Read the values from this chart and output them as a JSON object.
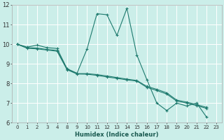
{
  "xlabel": "Humidex (Indice chaleur)",
  "bg_color": "#cbeee9",
  "grid_color": "#ffffff",
  "line_color": "#1e7a6e",
  "x_labels": [
    "0",
    "1",
    "2",
    "3",
    "4",
    "8",
    "9",
    "10",
    "11",
    "12",
    "13",
    "14",
    "15",
    "16",
    "17",
    "18",
    "19",
    "20",
    "21",
    "22",
    "23"
  ],
  "ylim": [
    6,
    12
  ],
  "yticks": [
    6,
    7,
    8,
    9,
    10,
    11,
    12
  ],
  "series": [
    {
      "y": [
        10.0,
        9.85,
        9.95,
        9.82,
        9.78,
        8.75,
        8.52,
        9.75,
        11.55,
        11.5,
        10.45,
        11.82,
        9.45,
        8.2,
        7.0,
        6.62,
        7.0,
        6.85,
        7.0,
        6.28,
        null
      ]
    },
    {
      "y": [
        10.0,
        9.82,
        9.8,
        9.73,
        9.68,
        8.73,
        8.5,
        8.5,
        8.45,
        8.38,
        8.3,
        8.22,
        8.15,
        7.85,
        7.7,
        7.52,
        7.15,
        7.05,
        6.92,
        6.78,
        null
      ]
    },
    {
      "y": [
        10.0,
        9.79,
        9.76,
        9.7,
        9.64,
        8.7,
        8.48,
        8.47,
        8.41,
        8.33,
        8.26,
        8.18,
        8.12,
        7.8,
        7.64,
        7.46,
        7.1,
        7.0,
        6.87,
        6.73,
        null
      ]
    }
  ]
}
